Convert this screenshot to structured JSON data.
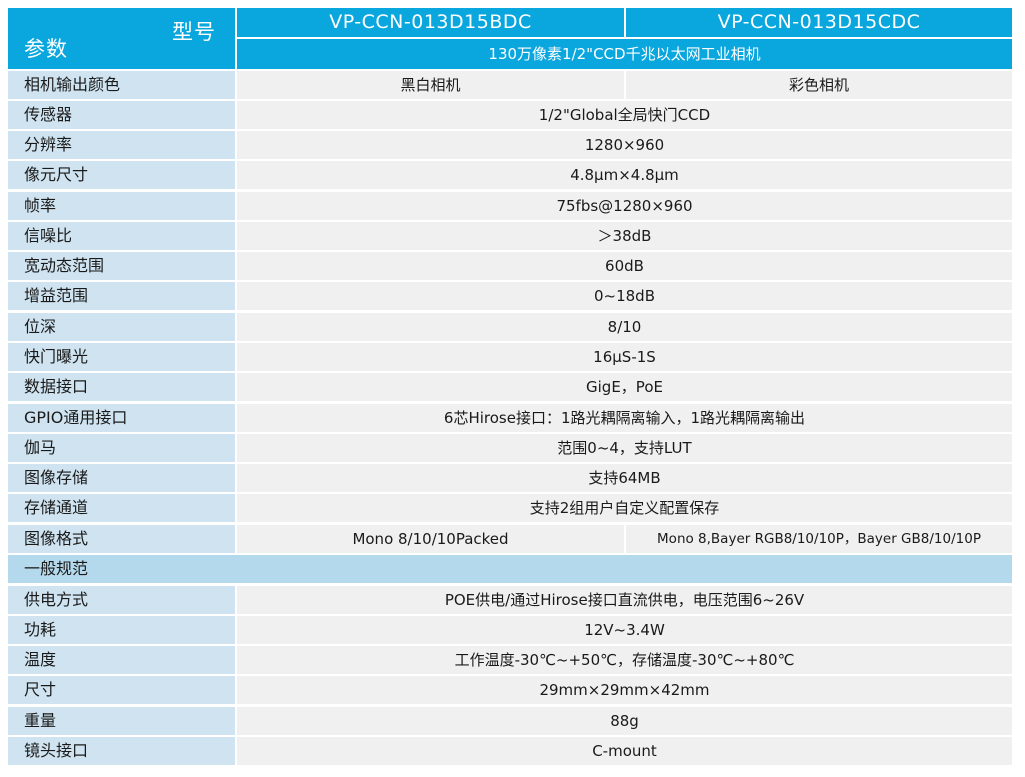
{
  "header": {
    "model_label": "型号",
    "params_label": "参数",
    "models": [
      "VP-CCN-013D15BDC",
      "VP-CCN-013D15CDC"
    ],
    "subtitle": "130万像素1/2\"CCD千兆以太网工业相机"
  },
  "color_row": {
    "label": "相机输出颜色",
    "mono": "黑白相机",
    "color": "彩色相机"
  },
  "specs": [
    {
      "label": "传感器",
      "value": "1/2\"Global全局快门CCD"
    },
    {
      "label": "分辨率",
      "value": "1280×960"
    },
    {
      "label": "像元尺寸",
      "value": "4.8μm×4.8μm"
    },
    {
      "label": "帧率",
      "value": "75fbs@1280×960"
    },
    {
      "label": "信噪比",
      "value": "＞38dB"
    },
    {
      "label": "宽动态范围",
      "value": "60dB"
    },
    {
      "label": "增益范围",
      "value": "0~18dB"
    },
    {
      "label": "位深",
      "value": "8/10"
    },
    {
      "label": "快门曝光",
      "value": "16μS-1S"
    },
    {
      "label": "数据接口",
      "value": "GigE，PoE"
    },
    {
      "label": "GPIO通用接口",
      "value": "6芯Hirose接口：1路光耦隔离输入，1路光耦隔离输出"
    },
    {
      "label": "伽马",
      "value": "范围0~4，支持LUT"
    },
    {
      "label": "图像存储",
      "value": "支持64MB"
    },
    {
      "label": "存储通道",
      "value": "支持2组用户自定义配置保存"
    }
  ],
  "format_row": {
    "label": "图像格式",
    "mono": "Mono 8/10/10Packed",
    "color": "Mono 8,Bayer RGB8/10/10P，Bayer GB8/10/10P"
  },
  "section_general": "一般规范",
  "general": [
    {
      "label": "供电方式",
      "value": "POE供电/通过Hirose接口直流供电，电压范围6~26V"
    },
    {
      "label": "功耗",
      "value": "12V~3.4W"
    },
    {
      "label": "温度",
      "value": "工作温度-30℃~+50℃，存储温度-30℃~+80℃"
    },
    {
      "label": "尺寸",
      "value": "29mm×29mm×42mm"
    },
    {
      "label": "重量",
      "value": "88g"
    },
    {
      "label": "镜头接口",
      "value": "C-mount"
    }
  ]
}
